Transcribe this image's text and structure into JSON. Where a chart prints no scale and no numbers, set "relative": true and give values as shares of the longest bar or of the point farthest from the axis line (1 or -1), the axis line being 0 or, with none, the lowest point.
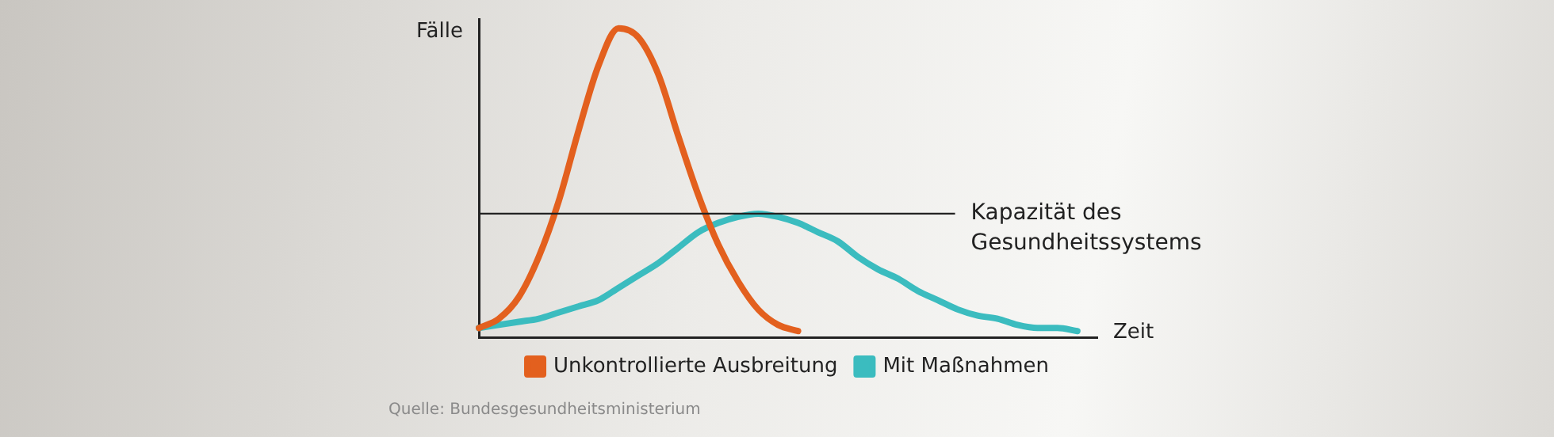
{
  "chart_data": {
    "type": "line",
    "relative": true,
    "ylabel": "Fälle",
    "xlabel": "Zeit",
    "legend": "bottom",
    "marker": "none",
    "line_style": "solid",
    "grid": false,
    "categories": [
      null,
      null,
      null,
      null,
      null,
      null,
      null,
      null,
      null,
      null,
      null,
      null,
      null,
      null,
      null,
      null,
      null,
      null,
      null,
      null,
      null,
      null,
      null,
      null,
      null,
      null,
      null,
      null,
      null,
      null,
      null,
      null
    ],
    "series": [
      {
        "name": "Unkontrollierte Ausbreitung",
        "color": "#e3601e",
        "values": [
          0.03,
          0.06,
          0.13,
          0.26,
          0.44,
          0.67,
          0.88,
          1,
          0.97,
          0.85,
          0.65,
          0.46,
          0.3,
          0.18,
          0.09,
          0.04,
          0.02,
          null,
          null,
          null,
          null,
          null,
          null,
          null,
          null,
          null,
          null,
          null,
          null,
          null,
          null,
          null
        ]
      },
      {
        "name": "Mit Maßnahmen",
        "color": "#3bbcbf",
        "values": [
          0.03,
          0.04,
          0.05,
          0.06,
          0.08,
          0.1,
          0.12,
          0.16,
          0.2,
          0.24,
          0.29,
          0.34,
          0.37,
          0.39,
          0.4,
          0.39,
          0.37,
          0.34,
          0.31,
          0.26,
          0.22,
          0.19,
          0.15,
          0.12,
          0.09,
          0.07,
          0.06,
          0.04,
          0.03,
          0.03,
          0.02,
          null
        ]
      }
    ],
    "ref_lines": [
      {
        "axis": "y",
        "value": 0.4,
        "label": "Kapazität des Gesundheitssystems",
        "color": "#222222"
      }
    ],
    "annotations": [
      "Quelle: Bundesgesundheitsministerium"
    ]
  }
}
